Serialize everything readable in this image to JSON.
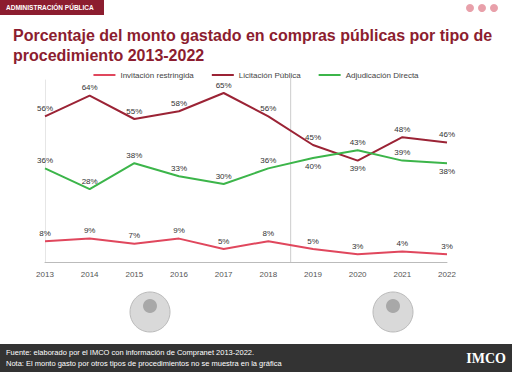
{
  "chart_data": {
    "type": "line",
    "title": "Porcentaje del monto gastado en compras públicas por tipo de procedimiento 2013-2022",
    "annotations": [
      "ADMINISTRACIÓN PÚBLICA",
      "Fuente: elaborado por el IMCO con información de Compranet 2013-2022.",
      "Nota: El monto gasto por otros tipos de procedimientos no se muestra en la gráfica",
      "IMCO"
    ],
    "categories": [
      "2013",
      "2014",
      "2015",
      "2016",
      "2017",
      "2018",
      "2019",
      "2020",
      "2021",
      "2022"
    ],
    "series": [
      {
        "name": "Invitación restringida",
        "color": "#e0475d",
        "values": [
          8,
          9,
          7,
          9,
          5,
          8,
          5,
          3,
          4,
          3
        ],
        "value_labels": [
          "8%",
          "9%",
          "7%",
          "9%",
          "5%",
          "8%",
          "5%",
          "3%",
          "4%",
          "3%"
        ]
      },
      {
        "name": "Licitación Pública",
        "color": "#9b2335",
        "values": [
          56,
          64,
          55,
          58,
          65,
          56,
          45,
          39,
          48,
          46
        ],
        "value_labels": [
          "56%",
          "64%",
          "55%",
          "58%",
          "65%",
          "56%",
          "45%",
          "39%",
          "48%",
          "46%"
        ]
      },
      {
        "name": "Adjudicación Directa",
        "color": "#3cb54a",
        "values": [
          36,
          28,
          38,
          33,
          30,
          36,
          40,
          43,
          39,
          38
        ],
        "value_labels": [
          "36%",
          "28%",
          "38%",
          "33%",
          "30%",
          "36%",
          "40%",
          "43%",
          "39%",
          "38%"
        ]
      }
    ],
    "ylim": [
      0,
      70
    ],
    "grid": false,
    "legend": "top",
    "data_labels": true,
    "tick_labels": "x"
  }
}
